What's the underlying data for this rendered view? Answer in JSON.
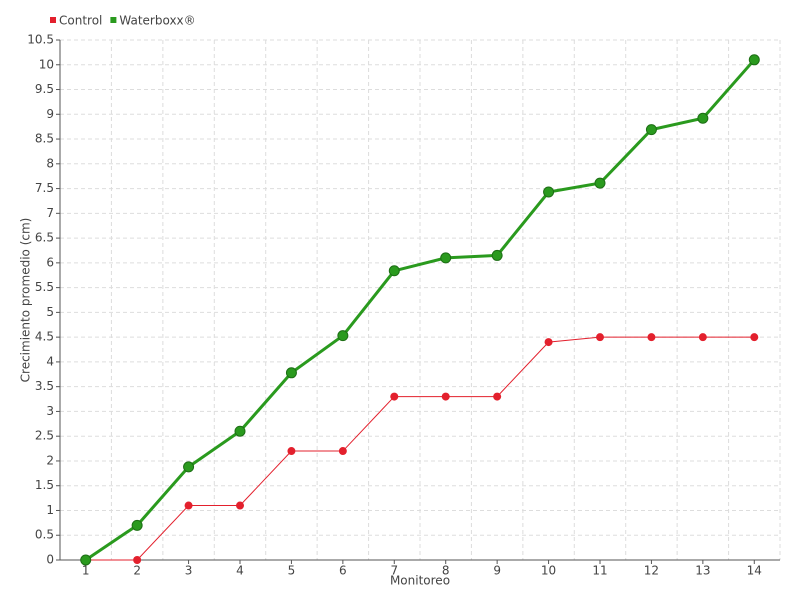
{
  "chart_data": {
    "type": "line",
    "x_label": "Monitoreo",
    "y_label": "Crecimiento promedio (cm)",
    "categories": [
      "1",
      "2",
      "3",
      "4",
      "5",
      "6",
      "7",
      "8",
      "9",
      "10",
      "11",
      "12",
      "13",
      "14"
    ],
    "series": [
      {
        "name": "Control",
        "color": "#e3202d",
        "values": [
          0,
          0,
          1.1,
          1.1,
          2.2,
          2.2,
          3.3,
          3.3,
          3.3,
          4.4,
          4.5,
          4.5,
          4.5,
          4.5
        ]
      },
      {
        "name": "Waterboxx®",
        "color": "#2a9a1e",
        "values": [
          0,
          0.7,
          1.88,
          2.6,
          3.78,
          4.53,
          5.84,
          6.1,
          6.15,
          7.43,
          7.61,
          8.69,
          8.92,
          10.1
        ]
      }
    ],
    "ylim": [
      0,
      10.5
    ],
    "yticks": [
      0,
      0.5,
      1,
      1.5,
      2,
      2.5,
      3,
      3.5,
      4,
      4.5,
      5,
      5.5,
      6,
      6.5,
      7,
      7.5,
      8,
      8.5,
      9,
      9.5,
      10,
      10.5
    ],
    "grid": true,
    "legend": "top-left"
  }
}
